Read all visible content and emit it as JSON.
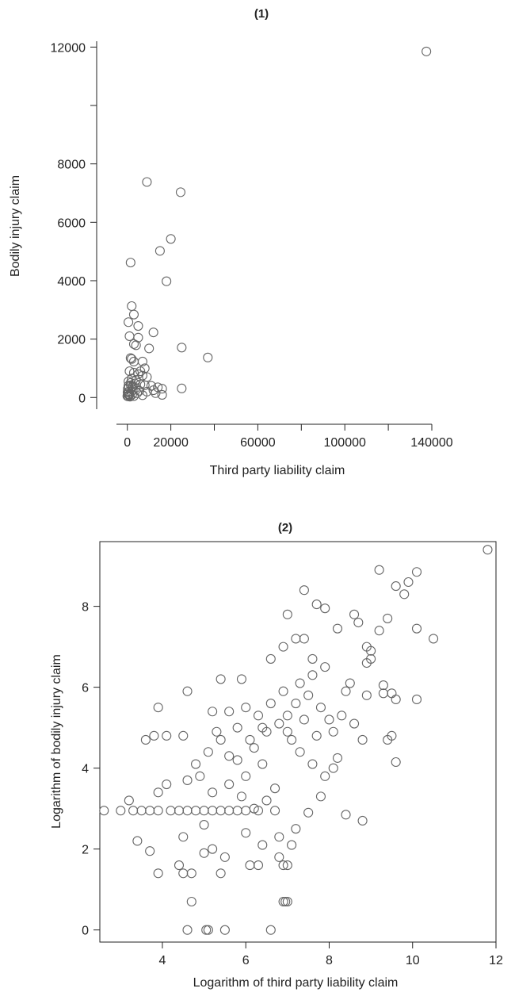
{
  "chart_data": [
    {
      "type": "scatter",
      "title": "(1)",
      "xlabel": "Third party liability claim",
      "ylabel": "Bodily injury claim",
      "xlim": [
        -5000,
        140000
      ],
      "ylim": [
        -400,
        12200
      ],
      "x_ticks": [
        0,
        20000,
        40000,
        60000,
        80000,
        100000,
        120000,
        140000
      ],
      "x_tick_labels": [
        "0",
        "20000",
        "",
        "60000",
        "",
        "100000",
        "",
        "140000"
      ],
      "y_ticks": [
        0,
        2000,
        4000,
        6000,
        8000,
        10000,
        12000
      ],
      "y_tick_labels": [
        "0",
        "2000",
        "4000",
        "6000",
        "8000",
        "",
        "12000"
      ],
      "points": [
        [
          137500,
          11850
        ],
        [
          9000,
          7380
        ],
        [
          24500,
          7030
        ],
        [
          20000,
          5430
        ],
        [
          15000,
          5020
        ],
        [
          18000,
          3980
        ],
        [
          1500,
          4620
        ],
        [
          2000,
          3130
        ],
        [
          3000,
          2840
        ],
        [
          500,
          2580
        ],
        [
          5000,
          2450
        ],
        [
          12000,
          2230
        ],
        [
          1000,
          2100
        ],
        [
          5000,
          2050
        ],
        [
          25000,
          1710
        ],
        [
          37000,
          1370
        ],
        [
          10000,
          1680
        ],
        [
          3000,
          1830
        ],
        [
          4000,
          1790
        ],
        [
          1500,
          1350
        ],
        [
          2000,
          1320
        ],
        [
          7000,
          1230
        ],
        [
          3000,
          1230
        ],
        [
          8000,
          1000
        ],
        [
          6000,
          900
        ],
        [
          1000,
          900
        ],
        [
          3000,
          850
        ],
        [
          5000,
          800
        ],
        [
          7000,
          750
        ],
        [
          9000,
          700
        ],
        [
          2000,
          650
        ],
        [
          4000,
          600
        ],
        [
          500,
          550
        ],
        [
          1500,
          500
        ],
        [
          3500,
          480
        ],
        [
          6000,
          450
        ],
        [
          8000,
          420
        ],
        [
          11000,
          400
        ],
        [
          14000,
          350
        ],
        [
          16000,
          300
        ],
        [
          25000,
          310
        ],
        [
          12000,
          250
        ],
        [
          2500,
          260
        ],
        [
          5500,
          230
        ],
        [
          9000,
          200
        ],
        [
          4500,
          150
        ],
        [
          13000,
          150
        ],
        [
          16000,
          90
        ],
        [
          7000,
          80
        ],
        [
          1000,
          100
        ],
        [
          0,
          50
        ],
        [
          300,
          120
        ],
        [
          600,
          200
        ],
        [
          800,
          80
        ],
        [
          1200,
          30
        ],
        [
          200,
          300
        ],
        [
          500,
          400
        ],
        [
          1800,
          200
        ],
        [
          2200,
          100
        ],
        [
          3000,
          50
        ],
        [
          100,
          180
        ],
        [
          400,
          40
        ],
        [
          700,
          350
        ],
        [
          1600,
          420
        ],
        [
          2600,
          380
        ],
        [
          3800,
          330
        ]
      ]
    },
    {
      "type": "scatter",
      "title": "(2)",
      "xlabel": "Logarithm of third party liability claim",
      "ylabel": "Logarithm of bodily injury claim",
      "xlim": [
        2.5,
        12
      ],
      "ylim": [
        -0.3,
        9.6
      ],
      "x_ticks": [
        4,
        6,
        8,
        10,
        12
      ],
      "x_tick_labels": [
        "4",
        "6",
        "8",
        "10",
        "12"
      ],
      "y_ticks": [
        0,
        2,
        4,
        6,
        8
      ],
      "y_tick_labels": [
        "0",
        "2",
        "4",
        "6",
        "8"
      ],
      "points": [
        [
          11.8,
          9.4
        ],
        [
          9.2,
          8.9
        ],
        [
          10.1,
          8.85
        ],
        [
          9.6,
          8.5
        ],
        [
          9.9,
          8.6
        ],
        [
          9.8,
          8.3
        ],
        [
          7.4,
          8.4
        ],
        [
          7.7,
          8.05
        ],
        [
          7.0,
          7.8
        ],
        [
          7.9,
          7.95
        ],
        [
          8.6,
          7.8
        ],
        [
          8.2,
          7.45
        ],
        [
          9.4,
          7.7
        ],
        [
          10.1,
          7.45
        ],
        [
          10.5,
          7.2
        ],
        [
          9.2,
          7.4
        ],
        [
          8.7,
          7.6
        ],
        [
          7.2,
          7.2
        ],
        [
          7.4,
          7.2
        ],
        [
          6.9,
          7.0
        ],
        [
          9.0,
          6.9
        ],
        [
          8.9,
          7.0
        ],
        [
          9.0,
          6.7
        ],
        [
          8.9,
          6.6
        ],
        [
          6.6,
          6.7
        ],
        [
          7.6,
          6.7
        ],
        [
          7.9,
          6.5
        ],
        [
          8.5,
          6.1
        ],
        [
          9.3,
          6.05
        ],
        [
          10.1,
          5.7
        ],
        [
          9.6,
          5.7
        ],
        [
          9.5,
          5.85
        ],
        [
          9.3,
          5.85
        ],
        [
          8.9,
          5.8
        ],
        [
          8.4,
          5.9
        ],
        [
          3.9,
          5.5
        ],
        [
          4.6,
          5.9
        ],
        [
          5.4,
          6.2
        ],
        [
          5.9,
          6.2
        ],
        [
          5.2,
          5.4
        ],
        [
          5.6,
          5.4
        ],
        [
          6.0,
          5.5
        ],
        [
          9.5,
          4.8
        ],
        [
          9.6,
          4.15
        ],
        [
          9.4,
          4.7
        ],
        [
          8.8,
          4.7
        ],
        [
          8.2,
          4.25
        ],
        [
          8.1,
          4.0
        ],
        [
          8.4,
          2.85
        ],
        [
          8.8,
          2.7
        ],
        [
          3.6,
          4.7
        ],
        [
          3.8,
          4.8
        ],
        [
          4.1,
          4.8
        ],
        [
          4.5,
          4.8
        ],
        [
          3.0,
          2.95
        ],
        [
          2.6,
          2.95
        ],
        [
          3.3,
          2.95
        ],
        [
          3.5,
          2.95
        ],
        [
          3.7,
          2.95
        ],
        [
          3.9,
          2.95
        ],
        [
          4.2,
          2.95
        ],
        [
          4.4,
          2.95
        ],
        [
          4.6,
          2.95
        ],
        [
          4.8,
          2.95
        ],
        [
          5.0,
          2.95
        ],
        [
          5.2,
          2.95
        ],
        [
          5.4,
          2.95
        ],
        [
          5.6,
          2.95
        ],
        [
          5.8,
          2.95
        ],
        [
          6.0,
          2.95
        ],
        [
          6.3,
          2.95
        ],
        [
          6.7,
          2.95
        ],
        [
          3.2,
          3.2
        ],
        [
          3.9,
          3.4
        ],
        [
          4.1,
          3.6
        ],
        [
          3.4,
          2.2
        ],
        [
          3.7,
          1.95
        ],
        [
          3.9,
          1.4
        ],
        [
          4.4,
          1.6
        ],
        [
          4.5,
          1.4
        ],
        [
          4.7,
          1.4
        ],
        [
          5.0,
          1.9
        ],
        [
          5.2,
          2.0
        ],
        [
          5.5,
          1.8
        ],
        [
          5.4,
          1.4
        ],
        [
          6.1,
          1.6
        ],
        [
          6.3,
          1.6
        ],
        [
          6.9,
          1.6
        ],
        [
          7.0,
          1.6
        ],
        [
          7.1,
          2.1
        ],
        [
          6.8,
          1.8
        ],
        [
          4.6,
          0.0
        ],
        [
          5.05,
          0.0
        ],
        [
          5.1,
          0.0
        ],
        [
          5.5,
          0.0
        ],
        [
          6.6,
          0.0
        ],
        [
          4.7,
          0.7
        ],
        [
          6.9,
          0.7
        ],
        [
          6.95,
          0.7
        ],
        [
          7.0,
          0.7
        ],
        [
          5.8,
          4.2
        ],
        [
          6.2,
          4.5
        ],
        [
          6.5,
          4.9
        ],
        [
          6.8,
          5.1
        ],
        [
          7.0,
          5.3
        ],
        [
          7.2,
          5.6
        ],
        [
          7.5,
          5.8
        ],
        [
          7.8,
          5.5
        ],
        [
          8.0,
          5.2
        ],
        [
          6.4,
          4.1
        ],
        [
          6.0,
          3.8
        ],
        [
          5.6,
          3.6
        ],
        [
          5.2,
          3.4
        ],
        [
          4.9,
          3.8
        ],
        [
          5.1,
          4.4
        ],
        [
          5.4,
          4.7
        ],
        [
          5.8,
          5.0
        ],
        [
          6.3,
          5.3
        ],
        [
          6.6,
          5.6
        ],
        [
          6.9,
          5.9
        ],
        [
          7.3,
          6.1
        ],
        [
          7.6,
          6.3
        ],
        [
          7.1,
          4.7
        ],
        [
          7.3,
          4.4
        ],
        [
          7.6,
          4.1
        ],
        [
          7.9,
          3.8
        ],
        [
          6.7,
          3.5
        ],
        [
          6.5,
          3.2
        ],
        [
          6.2,
          3.0
        ],
        [
          5.9,
          3.3
        ],
        [
          4.6,
          3.7
        ],
        [
          4.8,
          4.1
        ],
        [
          5.3,
          4.9
        ],
        [
          5.6,
          4.3
        ],
        [
          6.1,
          4.7
        ],
        [
          6.4,
          5.0
        ],
        [
          7.0,
          4.9
        ],
        [
          7.4,
          5.2
        ],
        [
          7.7,
          4.8
        ],
        [
          8.1,
          4.9
        ],
        [
          8.3,
          5.3
        ],
        [
          8.6,
          5.1
        ],
        [
          6.0,
          2.4
        ],
        [
          6.4,
          2.1
        ],
        [
          6.8,
          2.3
        ],
        [
          7.2,
          2.5
        ],
        [
          7.5,
          2.9
        ],
        [
          7.8,
          3.3
        ],
        [
          5.0,
          2.6
        ],
        [
          4.5,
          2.3
        ]
      ]
    }
  ]
}
